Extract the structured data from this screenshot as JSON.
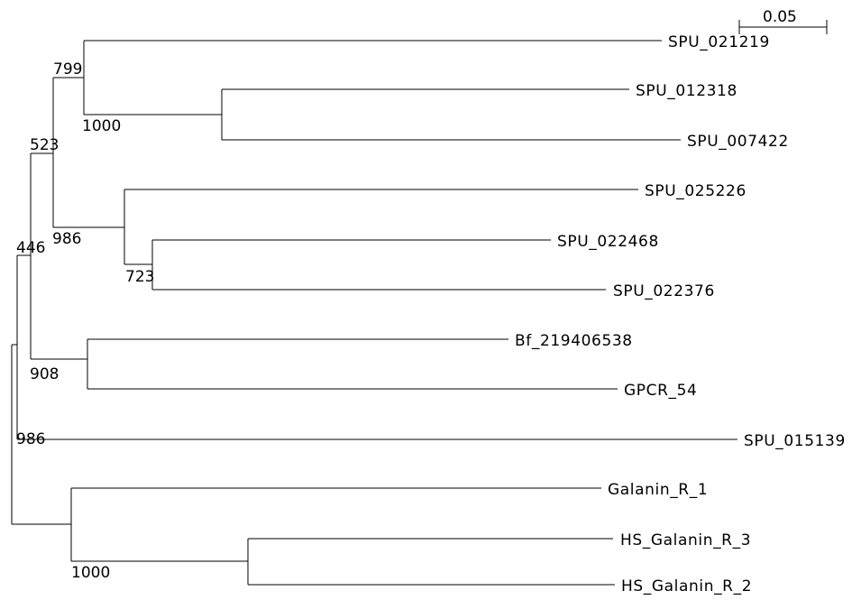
{
  "tree": {
    "scale_bar_label": "0.05",
    "leaves": [
      "SPU_021219",
      "SPU_012318",
      "SPU_007422",
      "SPU_025226",
      "SPU_022468",
      "SPU_022376",
      "Bf_219406538",
      "GPCR_54",
      "SPU_015139",
      "Galanin_R_1",
      "HS_Galanin_R_3",
      "HS_Galanin_R_2"
    ],
    "bootstrap": [
      "799",
      "1000",
      "523",
      "986",
      "723",
      "446",
      "908",
      "986",
      "1000"
    ],
    "colors": {
      "line": "#000000",
      "text": "#000000",
      "background": "#ffffff"
    }
  }
}
